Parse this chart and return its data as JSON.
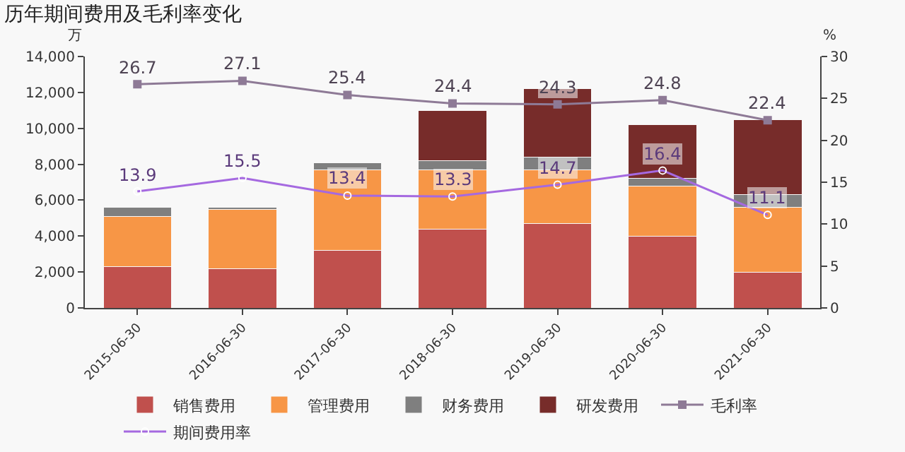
{
  "chart_data": {
    "type": "bar",
    "title": "历年期间费用及毛利率变化",
    "ylabel": "万",
    "y2label": "%",
    "categories": [
      "2015-06-30",
      "2016-06-30",
      "2017-06-30",
      "2018-06-30",
      "2019-06-30",
      "2020-06-30",
      "2021-06-30"
    ],
    "stacked": true,
    "legend": "bottom",
    "grid": false,
    "series": [
      {
        "name": "销售费用",
        "color": "#c0504d",
        "values": [
          2300,
          2200,
          3200,
          4400,
          4700,
          4000,
          2000
        ]
      },
      {
        "name": "管理费用",
        "color": "#f79646",
        "values": [
          2800,
          3300,
          4500,
          3300,
          3000,
          2800,
          3600
        ]
      },
      {
        "name": "财务费用",
        "color": "#7f7f7f",
        "values": [
          500,
          100,
          400,
          500,
          700,
          400,
          700
        ]
      },
      {
        "name": "研发费用",
        "color": "#772c2a",
        "values": [
          null,
          null,
          null,
          2800,
          3800,
          3000,
          4200
        ]
      },
      {
        "name": "毛利率",
        "type": "line",
        "axis": "y2",
        "color": "#8e7a96",
        "marker": "square",
        "values": [
          26.7,
          27.1,
          25.4,
          24.4,
          24.3,
          24.8,
          22.4
        ],
        "value_labels": [
          "26.7",
          "27.1",
          "25.4",
          "24.4",
          "24.3",
          "24.8",
          "22.4"
        ]
      },
      {
        "name": "期间费用率",
        "type": "line",
        "axis": "y2",
        "color": "#a569e0",
        "marker": "circle",
        "values": [
          13.9,
          15.5,
          13.4,
          13.3,
          14.7,
          16.4,
          11.1
        ],
        "value_labels": [
          "13.9",
          "15.5",
          "13.4",
          "13.3",
          "14.7",
          "16.4",
          "11.1"
        ]
      }
    ],
    "ylim": [
      0,
      14000
    ],
    "yticks": [
      0,
      {
        "value": 2000,
        "label": "2,000"
      },
      {
        "value": 4000,
        "label": "4,000"
      },
      {
        "value": 6000,
        "label": "6,000"
      },
      {
        "value": 8000,
        "label": "8,000"
      },
      {
        "value": 10000,
        "label": "10,000"
      },
      {
        "value": 12000,
        "label": "12,000"
      },
      {
        "value": 14000,
        "label": "14,000"
      }
    ],
    "y2lim": [
      0,
      30
    ],
    "y2ticks": [
      0,
      5,
      10,
      15,
      20,
      25,
      30
    ]
  }
}
